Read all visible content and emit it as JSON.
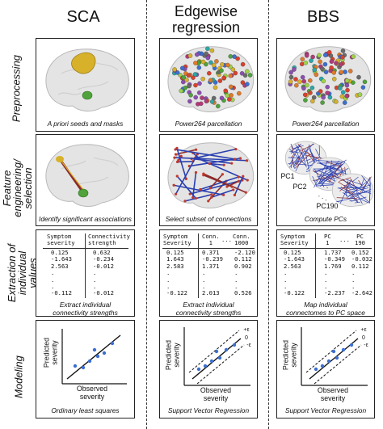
{
  "columns": {
    "sca": "SCA",
    "edgewise": "Edgewise\nregression",
    "bbs": "BBS"
  },
  "rows": {
    "preprocessing": "Preprocessing",
    "feature": "Feature\nengineering/\nselection",
    "extraction": "Extraction of\nindividual values",
    "modeling": "Modeling"
  },
  "captions": {
    "sca_pre": "A priori seeds and masks",
    "edge_pre": "Power264 parcellation",
    "bbs_pre": "Power264 parcellation",
    "sca_feat": "Identify significant associations",
    "edge_feat": "Select subset of connections",
    "bbs_feat": "Compute PCs",
    "sca_ext": "Extract individual\nconnectivity strengths",
    "edge_ext": "Extract individual\nconnectivity strengths",
    "bbs_ext": "Map individual\nconnectomes to PC space",
    "sca_mod": "Ordinary least squares",
    "edge_mod": "Support Vector Regression",
    "bbs_mod": "Support Vector Regression"
  },
  "pc_labels": {
    "pc1": "PC1",
    "pc2": "PC2",
    "pc190": "PC190",
    "dots": ". . ."
  },
  "tables": {
    "sca": {
      "headers": [
        "Symptom\nseverity",
        "Connectivity\nstrength"
      ],
      "rows": [
        [
          "0.125",
          "0.632"
        ],
        [
          "-1.643",
          "-0.234"
        ],
        [
          "2.563",
          "-0.012"
        ],
        [
          ".",
          "."
        ],
        [
          ".",
          "."
        ],
        [
          ".",
          "."
        ],
        [
          "-0.112",
          "-0.012"
        ]
      ]
    },
    "edge": {
      "headers": [
        "Symptom\nSeverity",
        "Conn.\n1",
        "...",
        "Conn.\n1000"
      ],
      "rows": [
        [
          "0.125",
          "0.371",
          "-2.120"
        ],
        [
          "1.643",
          "-0.239",
          "0.112"
        ],
        [
          "2.583",
          "1.371",
          "0.902"
        ],
        [
          ".",
          ".",
          "."
        ],
        [
          ".",
          ".",
          "."
        ],
        [
          ".",
          ".",
          "."
        ],
        [
          "-0.122",
          "2.013",
          "0.526"
        ]
      ]
    },
    "bbs": {
      "headers": [
        "Symptom\nSeverity",
        "PC\n1",
        "...",
        "PC\n190"
      ],
      "rows": [
        [
          "0.125",
          "1.737",
          "0.152"
        ],
        [
          "-1.643",
          "-0.349",
          "-0.032"
        ],
        [
          "2.563",
          "1.769",
          "0.112"
        ],
        [
          ".",
          ".",
          "."
        ],
        [
          ".",
          ".",
          "."
        ],
        [
          ".",
          ".",
          "."
        ],
        [
          "-0.122",
          "-2.237",
          "-2.642"
        ]
      ]
    }
  },
  "plots": {
    "ylabel": "Predicted\nseverity",
    "xlabel": "Observed\nseverity",
    "eps_labels": [
      "+ε",
      "0",
      "-ε"
    ]
  },
  "colors": {
    "border": "#222222",
    "points": "#3b6fd1",
    "seed_yellow": "#d8b12a",
    "seed_green": "#4fa33a",
    "edge_blue": "#2a3fb0",
    "edge_red": "#8c2a2a"
  }
}
